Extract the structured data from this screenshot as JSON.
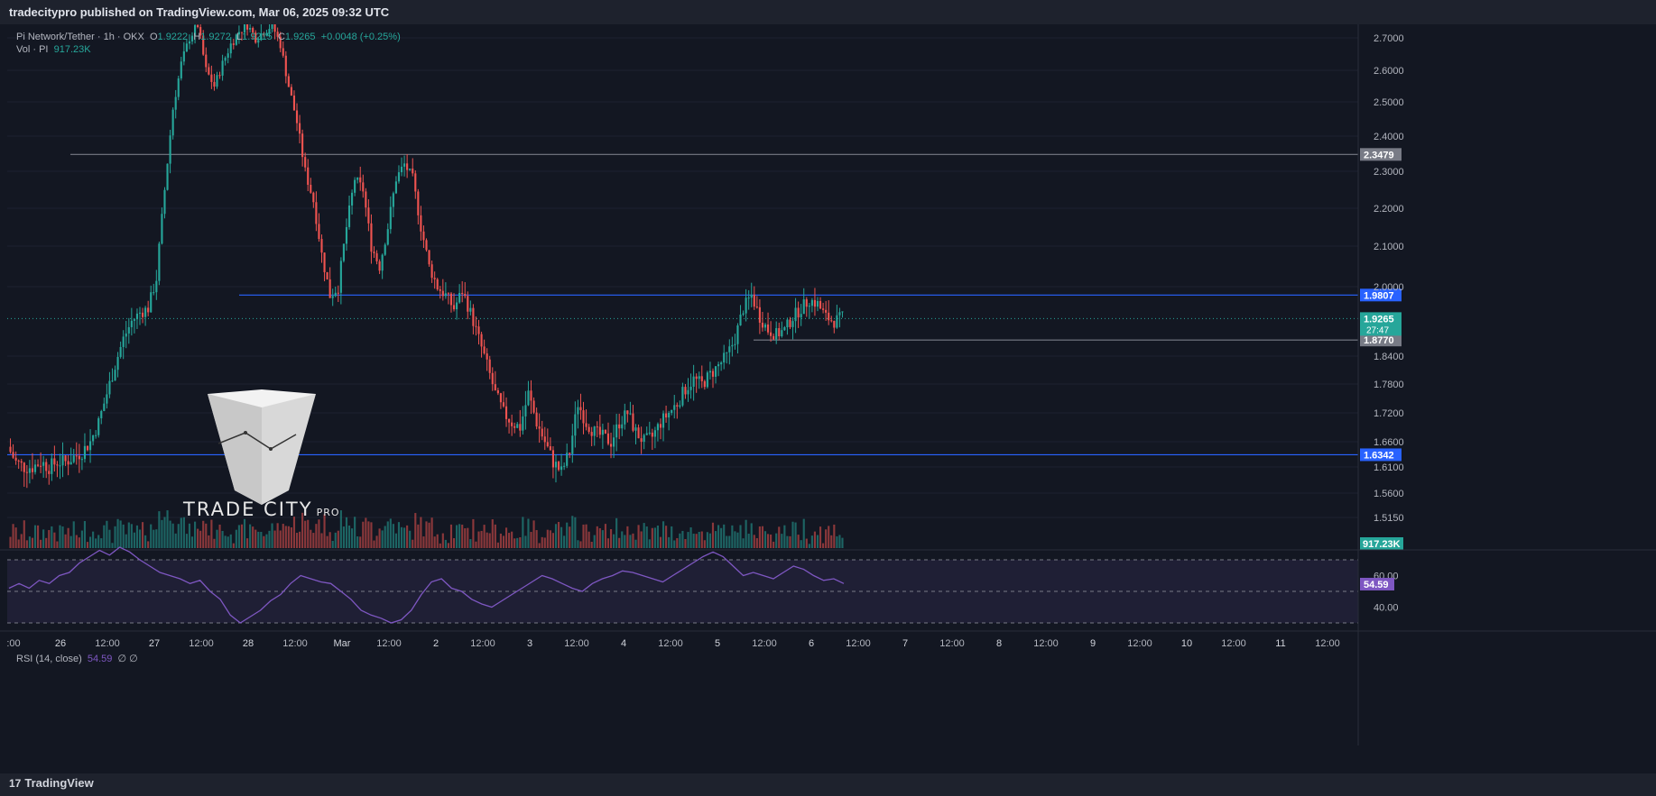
{
  "header": {
    "publish_text": "tradecitypro published on TradingView.com, Mar 06, 2025 09:32 UTC"
  },
  "footer": {
    "brand": "TradingView",
    "logo_glyph": "17"
  },
  "legend": {
    "symbol": "Pi Network/Tether · 1h · OKX",
    "o_label": "O",
    "o_val": "1.9222",
    "h_label": "H",
    "h_val": "1.9272",
    "l_label": "L",
    "l_val": "1.9215",
    "c_label": "C",
    "c_val": "1.9265",
    "change": "+0.0048 (+0.25%)",
    "vol_label": "Vol · PI",
    "vol_val": "917.23K"
  },
  "rsi_legend": {
    "label": "RSI (14, close)",
    "value": "54.59",
    "extra": "∅ ∅"
  },
  "watermark": {
    "brand": "TRADE CITY",
    "suffix": "PRO"
  },
  "colors": {
    "up": "#26a69a",
    "down": "#ef5350",
    "bg": "#131722",
    "level": "#2962ff",
    "rsi": "#7e57c2"
  },
  "chart_data": {
    "type": "candlestick",
    "symbol": "Pi Network/Tether",
    "timeframe": "1h",
    "exchange": "OKX",
    "y_ticks": [
      "2.7000",
      "2.6000",
      "2.5000",
      "2.4000",
      "2.3000",
      "2.2000",
      "2.1000",
      "2.0000",
      "1.8400",
      "1.7800",
      "1.7200",
      "1.6600",
      "1.6100",
      "1.5600",
      "1.5150"
    ],
    "x_ticks": [
      ":00",
      "26",
      "12:00",
      "27",
      "12:00",
      "28",
      "12:00",
      "Mar",
      "12:00",
      "2",
      "12:00",
      "3",
      "12:00",
      "4",
      "12:00",
      "5",
      "12:00",
      "6",
      "12:00",
      "7",
      "12:00",
      "8",
      "12:00",
      "9",
      "12:00",
      "10",
      "12:00",
      "11",
      "12:00"
    ],
    "horizontal_levels": [
      {
        "price": 2.3479,
        "label": "2.3479",
        "color": "#787b86"
      },
      {
        "price": 1.9807,
        "label": "1.9807",
        "color": "#2962ff"
      },
      {
        "price": 1.877,
        "label": "1.8770",
        "color": "#787b86"
      },
      {
        "price": 1.6342,
        "label": "1.6342",
        "color": "#2962ff"
      }
    ],
    "last_price": {
      "price": 1.9265,
      "label": "1.9265",
      "countdown": "27:47"
    },
    "volume_badge": "917.23K",
    "rsi": {
      "value": 54.59,
      "label": "54.59",
      "ticks": [
        "60.00",
        "40.00"
      ],
      "bands": [
        70,
        50,
        30
      ]
    },
    "price_path": [
      1.65,
      1.62,
      1.61,
      1.61,
      1.62,
      1.61,
      1.62,
      1.62,
      1.63,
      1.64,
      1.66,
      1.7,
      1.76,
      1.82,
      1.88,
      1.92,
      1.94,
      1.95,
      2.02,
      2.25,
      2.48,
      2.62,
      2.7,
      2.74,
      2.6,
      2.55,
      2.62,
      2.68,
      2.72,
      2.74,
      2.7,
      2.72,
      2.74,
      2.68,
      2.55,
      2.44,
      2.3,
      2.22,
      2.08,
      1.98,
      2.0,
      2.15,
      2.28,
      2.25,
      2.1,
      2.05,
      2.15,
      2.28,
      2.32,
      2.28,
      2.15,
      2.05,
      2.0,
      1.98,
      1.95,
      1.99,
      1.94,
      1.88,
      1.82,
      1.76,
      1.72,
      1.7,
      1.69,
      1.76,
      1.7,
      1.66,
      1.62,
      1.6,
      1.64,
      1.74,
      1.7,
      1.68,
      1.67,
      1.66,
      1.7,
      1.72,
      1.68,
      1.66,
      1.67,
      1.7,
      1.72,
      1.74,
      1.77,
      1.79,
      1.78,
      1.8,
      1.82,
      1.84,
      1.88,
      1.95,
      1.98,
      1.93,
      1.9,
      1.89,
      1.9,
      1.93,
      1.95,
      1.97,
      1.96,
      1.93,
      1.92,
      1.93
    ],
    "rsi_path": [
      52,
      55,
      52,
      57,
      55,
      60,
      62,
      68,
      72,
      76,
      73,
      78,
      75,
      70,
      66,
      62,
      60,
      58,
      55,
      57,
      50,
      45,
      35,
      30,
      34,
      38,
      44,
      48,
      55,
      60,
      58,
      56,
      55,
      50,
      45,
      38,
      35,
      33,
      30,
      32,
      38,
      48,
      56,
      58,
      52,
      50,
      45,
      42,
      40,
      44,
      48,
      52,
      56,
      60,
      58,
      55,
      52,
      50,
      55,
      58,
      60,
      63,
      62,
      60,
      58,
      56,
      60,
      64,
      68,
      72,
      75,
      72,
      66,
      60,
      62,
      60,
      58,
      62,
      66,
      64,
      60,
      57,
      58,
      55
    ]
  }
}
